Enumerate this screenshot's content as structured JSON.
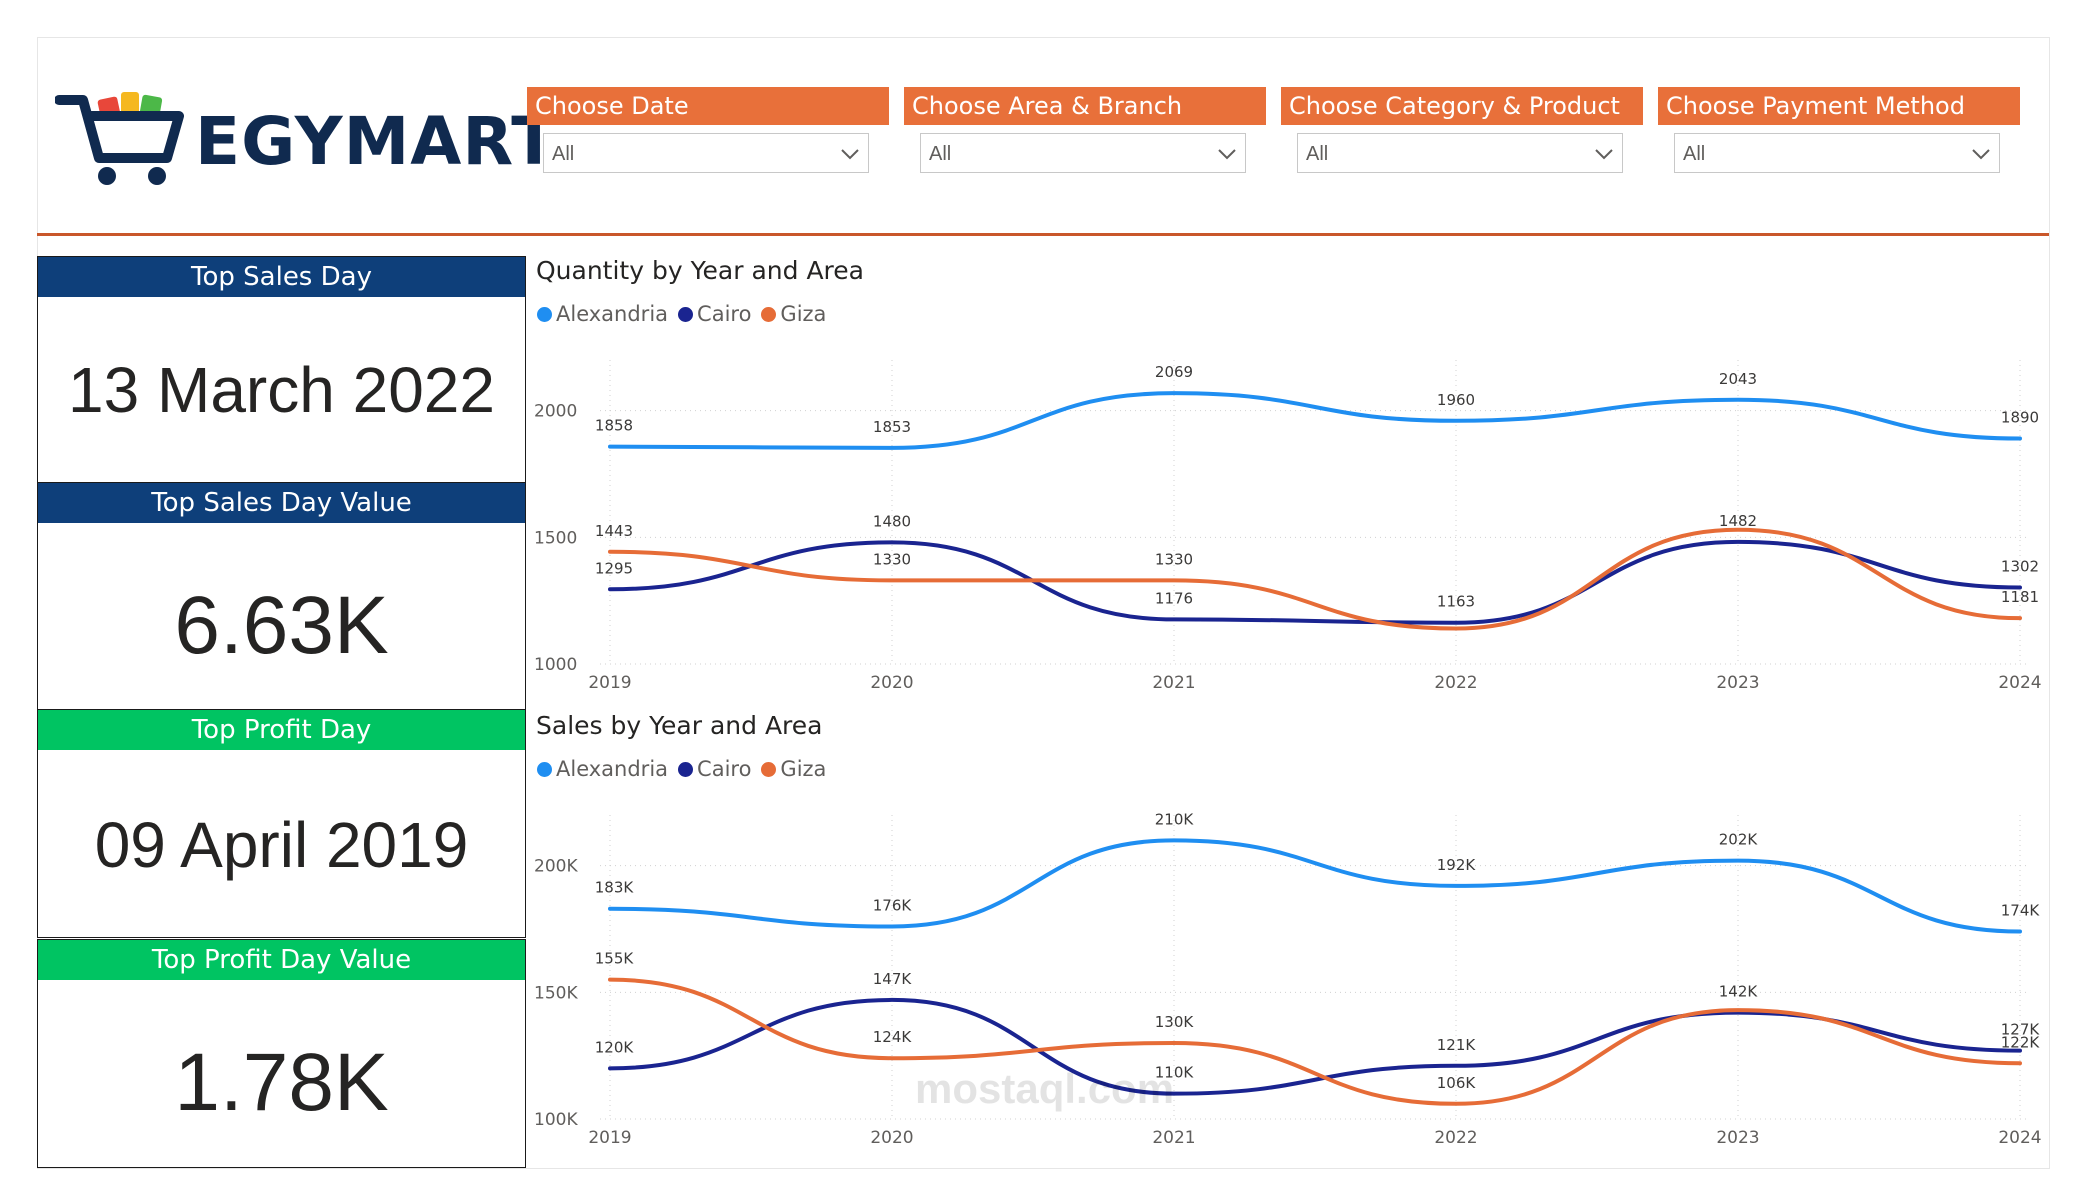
{
  "brand": {
    "name": "EGYMART"
  },
  "filters": [
    {
      "title": "Choose Date",
      "value": "All"
    },
    {
      "title": "Choose Area & Branch",
      "value": "All"
    },
    {
      "title": "Choose Category & Product",
      "value": "All"
    },
    {
      "title": "Choose Payment Method",
      "value": "All"
    }
  ],
  "cards": {
    "top_sales_day": {
      "title": "Top Sales Day",
      "value": "13 March 2022",
      "color": "#0e3f7a"
    },
    "top_sales_day_value": {
      "title": "Top Sales Day Value",
      "value": "6.63K",
      "color": "#0e3f7a"
    },
    "top_profit_day": {
      "title": "Top Profit Day",
      "value": "09 April 2019",
      "color": "#00c462"
    },
    "top_profit_day_value": {
      "title": "Top Profit Day Value",
      "value": "1.78K",
      "color": "#00c462"
    }
  },
  "colors": {
    "alexandria": "#1f8ef1",
    "cairo": "#1a2490",
    "giza": "#e66c37",
    "accent": "#e8703a",
    "header_line": "#c9572a"
  },
  "watermark": "mostaql.com",
  "chart_data": [
    {
      "type": "line",
      "title": "Quantity by Year and Area",
      "categories": [
        "2019",
        "2020",
        "2021",
        "2022",
        "2023",
        "2024"
      ],
      "series": [
        {
          "name": "Alexandria",
          "values": [
            1858,
            1853,
            2069,
            1960,
            2043,
            1890
          ],
          "labels": [
            "1858",
            "1853",
            "2069",
            "1960",
            "2043",
            "1890"
          ]
        },
        {
          "name": "Cairo",
          "values": [
            1295,
            1480,
            1176,
            1163,
            1482,
            1302
          ],
          "labels": [
            "1295",
            "1480",
            "1176",
            "1163",
            "1482",
            "1302"
          ]
        },
        {
          "name": "Giza",
          "values": [
            1443,
            1330,
            1330,
            1140,
            1530,
            1181
          ],
          "labels": [
            "1443",
            "1330",
            "1330",
            "",
            "",
            "1181"
          ]
        }
      ],
      "yticks": [
        "1000",
        "1500",
        "2000"
      ],
      "ytick_values": [
        1000,
        1500,
        2000
      ],
      "ylim": [
        1000,
        2200
      ],
      "legend": "top-left",
      "grid": true
    },
    {
      "type": "line",
      "title": "Sales by Year and Area",
      "categories": [
        "2019",
        "2020",
        "2021",
        "2022",
        "2023",
        "2024"
      ],
      "series": [
        {
          "name": "Alexandria",
          "values": [
            183000,
            176000,
            210000,
            192000,
            202000,
            174000
          ],
          "labels": [
            "183K",
            "176K",
            "210K",
            "192K",
            "202K",
            "174K"
          ]
        },
        {
          "name": "Cairo",
          "values": [
            120000,
            147000,
            110000,
            121000,
            142000,
            127000
          ],
          "labels": [
            "120K",
            "147K",
            "110K",
            "121K",
            "142K",
            "127K"
          ]
        },
        {
          "name": "Giza",
          "values": [
            155000,
            124000,
            130000,
            106000,
            143000,
            122000
          ],
          "labels": [
            "155K",
            "124K",
            "130K",
            "106K",
            "",
            "122K"
          ]
        }
      ],
      "yticks": [
        "100K",
        "150K",
        "200K"
      ],
      "ytick_values": [
        100000,
        150000,
        200000
      ],
      "ylim": [
        100000,
        220000
      ],
      "legend": "top-left",
      "grid": true
    }
  ]
}
